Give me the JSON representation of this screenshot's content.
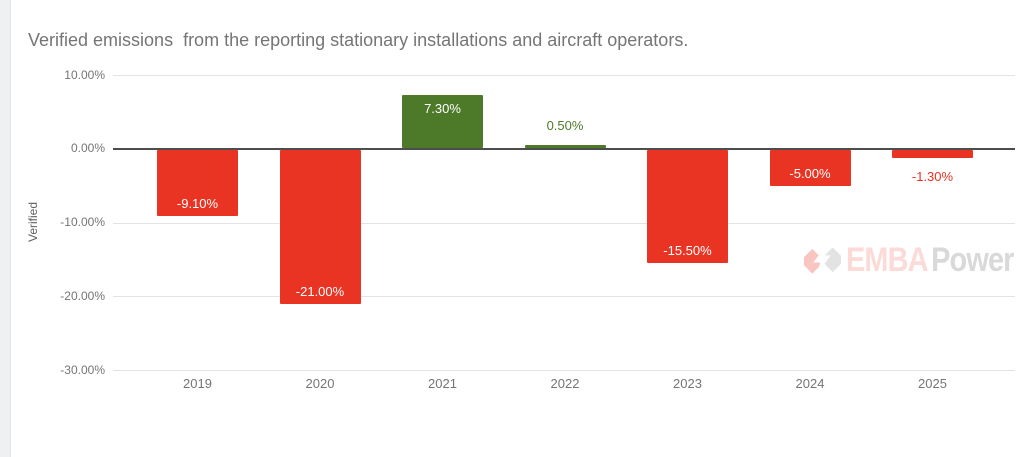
{
  "chart_data": {
    "type": "bar",
    "title": "Verified emissions  from the reporting stationary installations and aircraft operators.",
    "xlabel": "",
    "ylabel": "Verified",
    "categories": [
      "2019",
      "2020",
      "2021",
      "2022",
      "2023",
      "2024",
      "2025"
    ],
    "values": [
      -9.1,
      -21.0,
      7.3,
      0.5,
      -15.5,
      -5.0,
      -1.3
    ],
    "bar_labels": [
      "-9.10%",
      "-21.00%",
      "7.30%",
      "0.50%",
      "-15.50%",
      "-5.00%",
      "-1.30%"
    ],
    "colors": {
      "positive": "#4d7a28",
      "negative": "#e93423"
    },
    "y_ticks": [
      {
        "value": 10,
        "label": "10.00%"
      },
      {
        "value": 0,
        "label": "0.00%"
      },
      {
        "value": -10,
        "label": "-10.00%"
      },
      {
        "value": -20,
        "label": "-20.00%"
      },
      {
        "value": -30,
        "label": "-30.00%"
      }
    ],
    "ylim": [
      -30,
      10
    ],
    "grid": true,
    "legend": "none"
  },
  "watermark": {
    "brand_red": "EMBA",
    "brand_gray": "Power"
  }
}
